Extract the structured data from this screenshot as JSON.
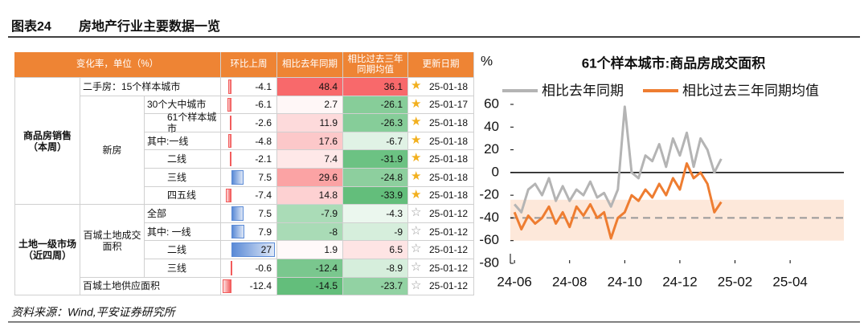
{
  "header": {
    "label": "图表24",
    "title": "房地产行业主要数据一览"
  },
  "table": {
    "columns": [
      "变化率，单位（%）",
      "环比上周",
      "相比去年同期",
      "相比过去三年同期均值",
      "更新日期"
    ],
    "sections": [
      {
        "label": "商品房销售\n（本周）",
        "subsections": [
          {
            "rows": [
              {
                "item": "二手房：15个样本城市",
                "values": [
                  -4.1,
                  48.4,
                  36.1
                ],
                "date": "25-01-18"
              }
            ]
          },
          {
            "label": "新房",
            "rows": [
              {
                "item": "30个大中城市",
                "values": [
                  -6.1,
                  2.7,
                  -26.1
                ],
                "date": "25-01-17"
              },
              {
                "item": "61个样本城市",
                "values": [
                  -2.6,
                  11.9,
                  -26.3
                ],
                "date": "25-01-18"
              },
              {
                "item": "其中:一线",
                "values": [
                  -4.8,
                  17.6,
                  -6.7
                ],
                "date": "25-01-18"
              },
              {
                "item": "二线",
                "values": [
                  -2.1,
                  7.4,
                  -31.9
                ],
                "date": "25-01-18"
              },
              {
                "item": "三线",
                "values": [
                  7.5,
                  29.6,
                  -24.8
                ],
                "date": "25-01-18"
              },
              {
                "item": "四五线",
                "values": [
                  -7.4,
                  14.8,
                  -33.9
                ],
                "date": "25-01-18"
              }
            ]
          }
        ]
      },
      {
        "label": "土地一级市场\n（近四周）",
        "subsections": [
          {
            "label": "百城土地成交\n面积",
            "rows": [
              {
                "item": "全部",
                "values": [
                  7.5,
                  -7.9,
                  -4.3
                ],
                "date": "25-01-12"
              },
              {
                "item": "其中: 一线",
                "values": [
                  7.9,
                  -8.0,
                  -9.0
                ],
                "date": "25-01-12"
              },
              {
                "item": "二线",
                "values": [
                  27.0,
                  1.9,
                  6.5
                ],
                "date": "25-01-12"
              },
              {
                "item": "三线",
                "values": [
                  -0.6,
                  -12.4,
                  -8.9
                ],
                "date": "25-01-12"
              }
            ]
          },
          {
            "rows": [
              {
                "item": "百城土地供应面积",
                "values": [
                  -12.4,
                  -14.5,
                  -23.7
                ],
                "date": "25-01-12"
              }
            ]
          }
        ]
      }
    ]
  },
  "chart_data": {
    "type": "line",
    "title": "61个样本城市:商品房成交面积",
    "y_label": "%",
    "x": [
      0,
      0.25,
      0.5,
      0.75,
      1,
      1.25,
      1.5,
      1.75,
      2,
      2.25,
      2.5,
      2.75,
      3,
      3.25,
      3.5,
      3.75,
      4,
      4.25,
      4.5,
      4.75,
      5,
      5.25,
      5.5,
      5.75,
      6,
      6.25,
      6.5,
      6.75,
      7,
      7.25,
      7.5
    ],
    "series": [
      {
        "name": "相比去年同期",
        "color": "#b4b4b4",
        "values": [
          -28,
          -35,
          -15,
          -10,
          -20,
          -5,
          -25,
          -12,
          -25,
          -15,
          -20,
          -8,
          -22,
          -18,
          -30,
          -15,
          58,
          0,
          -5,
          15,
          10,
          25,
          5,
          30,
          15,
          35,
          5,
          30,
          20,
          0,
          12
        ]
      },
      {
        "name": "相比过去三年同期均值",
        "color": "#ee7d31",
        "values": [
          -35,
          -50,
          -38,
          -45,
          -40,
          -30,
          -45,
          -35,
          -48,
          -30,
          -38,
          -28,
          -40,
          -35,
          -58,
          -40,
          -35,
          -20,
          -25,
          -15,
          -22,
          -10,
          -20,
          -5,
          -15,
          8,
          -5,
          0,
          -10,
          -35,
          -26
        ]
      }
    ],
    "xlim": [
      -0.15,
      11.95
    ],
    "xticks": [
      {
        "value": 0,
        "label": "24-06"
      },
      {
        "value": 2,
        "label": "24-08"
      },
      {
        "value": 4,
        "label": "24-10"
      },
      {
        "value": 6,
        "label": "24-12"
      },
      {
        "value": 8,
        "label": "25-02"
      },
      {
        "value": 10,
        "label": "25-04"
      }
    ],
    "ylim": [
      -80,
      60
    ],
    "yticks": [
      -80,
      -60,
      -40,
      -20,
      0,
      20,
      40,
      60
    ],
    "shaded_range": [
      -60,
      -24
    ],
    "reference_line": -40
  },
  "source": "资料来源：Wind,平安证券研究所"
}
